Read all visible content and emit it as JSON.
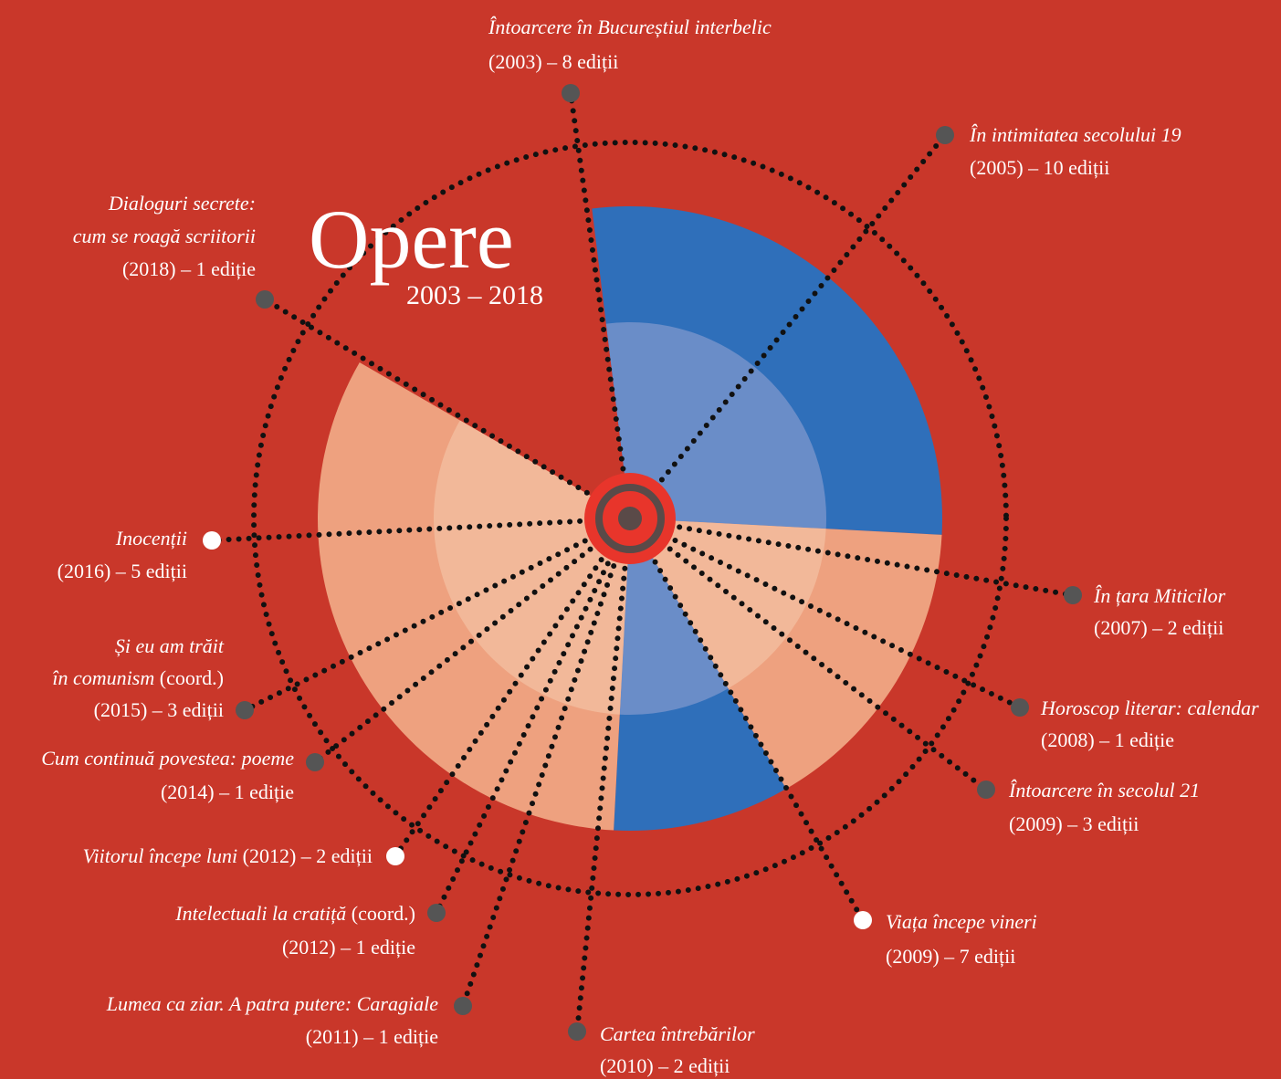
{
  "title": "Opere",
  "subtitle": "2003 – 2018",
  "nodes": [
    {
      "title": [
        "Întoarcere în Bucureștiul interbelic"
      ],
      "edition": "(2003) – 8 ediții",
      "color": "#555"
    },
    {
      "title": [
        "În intimitatea secolului 19"
      ],
      "edition": "(2005) – 10 ediții",
      "color": "#555"
    },
    {
      "title": [
        "În țara Miticilor"
      ],
      "edition": "(2007) – 2 ediții",
      "color": "#555"
    },
    {
      "title": [
        "Horoscop literar: calendar"
      ],
      "edition": "(2008) – 1 ediție",
      "color": "#555"
    },
    {
      "title": [
        "Întoarcere în secolul 21"
      ],
      "edition": "(2009) – 3 ediții",
      "color": "#555"
    },
    {
      "title": [
        "Viața începe vineri"
      ],
      "edition": "(2009) – 7 ediții",
      "color": "#ffffff"
    },
    {
      "title": [
        "Cartea întrebărilor"
      ],
      "edition": "(2010) – 2 ediții",
      "color": "#555"
    },
    {
      "title": [
        "Lumea ca ziar. A patra putere: Caragiale"
      ],
      "edition": "(2011) –  1 ediție",
      "color": "#555"
    },
    {
      "title": [
        "Intelectuali la cratiță"
      ],
      "note": "(coord.)",
      "edition": "(2012) – 1 ediție",
      "color": "#555"
    },
    {
      "title": [
        "Viitorul începe luni"
      ],
      "edition": "(2012) – 2 ediții",
      "color": "#ffffff"
    },
    {
      "title": [
        "Cum continuă povestea: poeme"
      ],
      "edition": "(2014) – 1 ediție",
      "color": "#555"
    },
    {
      "title": [
        "Și eu am trăit",
        "în comunism"
      ],
      "note": "(coord.)",
      "edition": "(2015) – 3 ediții",
      "color": "#555"
    },
    {
      "title": [
        "Inocenții"
      ],
      "edition": "(2016) – 5 ediții",
      "color": "#ffffff"
    },
    {
      "title": [
        "Dialoguri secrete:",
        "cum se roagă scriitorii"
      ],
      "edition": "(2018) –  1 ediție",
      "color": "#555"
    }
  ]
}
